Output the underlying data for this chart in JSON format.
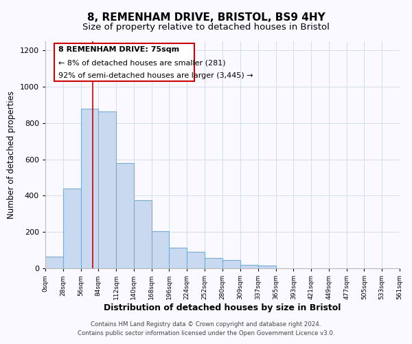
{
  "title": "8, REMENHAM DRIVE, BRISTOL, BS9 4HY",
  "subtitle": "Size of property relative to detached houses in Bristol",
  "xlabel": "Distribution of detached houses by size in Bristol",
  "ylabel": "Number of detached properties",
  "bar_color": "#c9d9f0",
  "bar_edge_color": "#7aadd4",
  "bins": [
    0,
    28,
    56,
    84,
    112,
    140,
    168,
    196,
    224,
    252,
    280,
    309,
    337,
    365,
    393,
    421,
    449,
    477,
    505,
    533,
    561
  ],
  "bin_labels": [
    "0sqm",
    "28sqm",
    "56sqm",
    "84sqm",
    "112sqm",
    "140sqm",
    "168sqm",
    "196sqm",
    "224sqm",
    "252sqm",
    "280sqm",
    "309sqm",
    "337sqm",
    "365sqm",
    "393sqm",
    "421sqm",
    "449sqm",
    "477sqm",
    "505sqm",
    "533sqm",
    "561sqm"
  ],
  "values": [
    65,
    440,
    880,
    865,
    580,
    375,
    205,
    115,
    90,
    55,
    45,
    20,
    15,
    0,
    0,
    0,
    0,
    0,
    0,
    0
  ],
  "property_line_x": 75,
  "property_line_color": "#cc0000",
  "ylim": [
    0,
    1250
  ],
  "yticks": [
    0,
    200,
    400,
    600,
    800,
    1000,
    1200
  ],
  "annotation_line1": "8 REMENHAM DRIVE: 75sqm",
  "annotation_line2": "← 8% of detached houses are smaller (281)",
  "annotation_line3": "92% of semi-detached houses are larger (3,445) →",
  "footer_line1": "Contains HM Land Registry data © Crown copyright and database right 2024.",
  "footer_line2": "Contains public sector information licensed under the Open Government Licence v3.0.",
  "background_color": "#f9f9ff",
  "title_fontsize": 11,
  "subtitle_fontsize": 9.5,
  "xlabel_fontsize": 9,
  "ylabel_fontsize": 8.5
}
